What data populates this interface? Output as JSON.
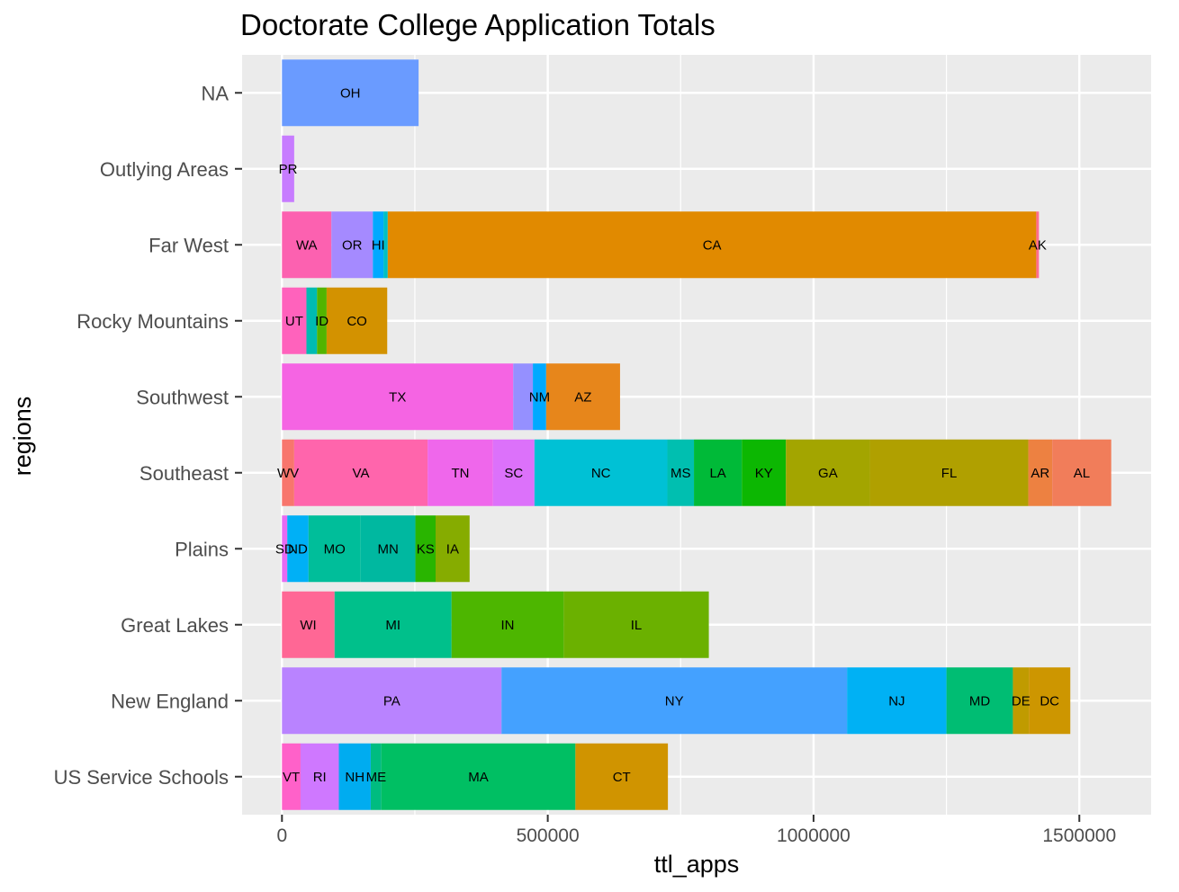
{
  "chart_data": {
    "type": "bar",
    "orientation": "horizontal",
    "stacked": true,
    "title": "Doctorate College Application Totals",
    "xlabel": "ttl_apps",
    "ylabel": "regions",
    "xlim": [
      -75000,
      1635000
    ],
    "xticks": [
      0,
      500000,
      1000000,
      1500000
    ],
    "xtick_labels": [
      "0",
      "500000",
      "1000000",
      "1500000"
    ],
    "grid": true,
    "legend": "none",
    "categories": [
      "NA",
      "Outlying Areas",
      "Far West",
      "Rocky Mountains",
      "Southwest",
      "Southeast",
      "Plains",
      "Great Lakes",
      "New England",
      "US Service Schools"
    ],
    "bars": [
      {
        "region": "NA",
        "segments": [
          {
            "state": "OH",
            "value": 257000,
            "color": "#6A9BFF"
          }
        ]
      },
      {
        "region": "Outlying Areas",
        "segments": [
          {
            "state": "PR",
            "value": 23000,
            "color": "#C77CFF"
          }
        ]
      },
      {
        "region": "Far West",
        "segments": [
          {
            "state": "WA",
            "value": 93000,
            "color": "#FC61B0"
          },
          {
            "state": "OR",
            "value": 78000,
            "color": "#A58AFF"
          },
          {
            "state": "HI",
            "value": 20000,
            "color": "#00A9FF"
          },
          {
            "state": "",
            "value": 8000,
            "color": "#00BFC4"
          },
          {
            "state": "CA",
            "value": 1220000,
            "color": "#E18A00"
          },
          {
            "state": "AK",
            "value": 5000,
            "color": "#FF6C91"
          }
        ]
      },
      {
        "region": "Rocky Mountains",
        "segments": [
          {
            "state": "UT",
            "value": 46000,
            "color": "#FF62BC"
          },
          {
            "state": "",
            "value": 20000,
            "color": "#00BBB2"
          },
          {
            "state": "ID",
            "value": 18000,
            "color": "#53B400"
          },
          {
            "state": "CO",
            "value": 114000,
            "color": "#D39200"
          }
        ]
      },
      {
        "region": "Southwest",
        "segments": [
          {
            "state": "TX",
            "value": 435000,
            "color": "#F564E3"
          },
          {
            "state": "",
            "value": 37000,
            "color": "#9590FF"
          },
          {
            "state": "NM",
            "value": 25000,
            "color": "#00A9FF"
          },
          {
            "state": "AZ",
            "value": 139000,
            "color": "#E7861B"
          }
        ]
      },
      {
        "region": "Southeast",
        "segments": [
          {
            "state": "WV",
            "value": 23000,
            "color": "#F8766D"
          },
          {
            "state": "VA",
            "value": 251000,
            "color": "#FF65AC"
          },
          {
            "state": "TN",
            "value": 123000,
            "color": "#EF67EB"
          },
          {
            "state": "SC",
            "value": 78000,
            "color": "#DC71FA"
          },
          {
            "state": "NC",
            "value": 250000,
            "color": "#00C1D5"
          },
          {
            "state": "MS",
            "value": 50000,
            "color": "#00BFB0"
          },
          {
            "state": "LA",
            "value": 90000,
            "color": "#00BA38"
          },
          {
            "state": "KY",
            "value": 83000,
            "color": "#0CB702"
          },
          {
            "state": "GA",
            "value": 158000,
            "color": "#A3A500"
          },
          {
            "state": "FL",
            "value": 298000,
            "color": "#B0A000"
          },
          {
            "state": "AR",
            "value": 45000,
            "color": "#ED8141"
          },
          {
            "state": "AL",
            "value": 111000,
            "color": "#F17D5A"
          }
        ]
      },
      {
        "region": "Plains",
        "segments": [
          {
            "state": "SD",
            "value": 10000,
            "color": "#E76BF3"
          },
          {
            "state": "ND",
            "value": 40000,
            "color": "#00B0F6"
          },
          {
            "state": "MO",
            "value": 98000,
            "color": "#00BE9A"
          },
          {
            "state": "MN",
            "value": 103000,
            "color": "#00B8A0"
          },
          {
            "state": "KS",
            "value": 38000,
            "color": "#29B500"
          },
          {
            "state": "IA",
            "value": 64000,
            "color": "#86AC00"
          }
        ]
      },
      {
        "region": "Great Lakes",
        "segments": [
          {
            "state": "WI",
            "value": 99000,
            "color": "#FF6795"
          },
          {
            "state": "MI",
            "value": 220000,
            "color": "#00C08B"
          },
          {
            "state": "IN",
            "value": 211000,
            "color": "#4DB600"
          },
          {
            "state": "IL",
            "value": 273000,
            "color": "#6BB100"
          }
        ]
      },
      {
        "region": "New England",
        "segments": [
          {
            "state": "PA",
            "value": 413000,
            "color": "#B983FF"
          },
          {
            "state": "NY",
            "value": 650000,
            "color": "#44A1FF"
          },
          {
            "state": "NJ",
            "value": 187000,
            "color": "#00B1F4"
          },
          {
            "state": "MD",
            "value": 125000,
            "color": "#00BD73"
          },
          {
            "state": "DE",
            "value": 30000,
            "color": "#C09B00"
          },
          {
            "state": "DC",
            "value": 78000,
            "color": "#CD9600"
          }
        ]
      },
      {
        "region": "US Service Schools",
        "segments": [
          {
            "state": "VT",
            "value": 35000,
            "color": "#FF61C9"
          },
          {
            "state": "RI",
            "value": 72000,
            "color": "#CF78FF"
          },
          {
            "state": "NH",
            "value": 60000,
            "color": "#00ACF0"
          },
          {
            "state": "ME",
            "value": 20000,
            "color": "#00BC80"
          },
          {
            "state": "MA",
            "value": 365000,
            "color": "#00BF63"
          },
          {
            "state": "CT",
            "value": 174000,
            "color": "#D09400"
          }
        ]
      }
    ]
  },
  "colors": {
    "panel_background": "#EBEBEB",
    "grid_line": "#FFFFFF",
    "tick_label": "#4D4D4D",
    "tick_mark": "#333333"
  }
}
